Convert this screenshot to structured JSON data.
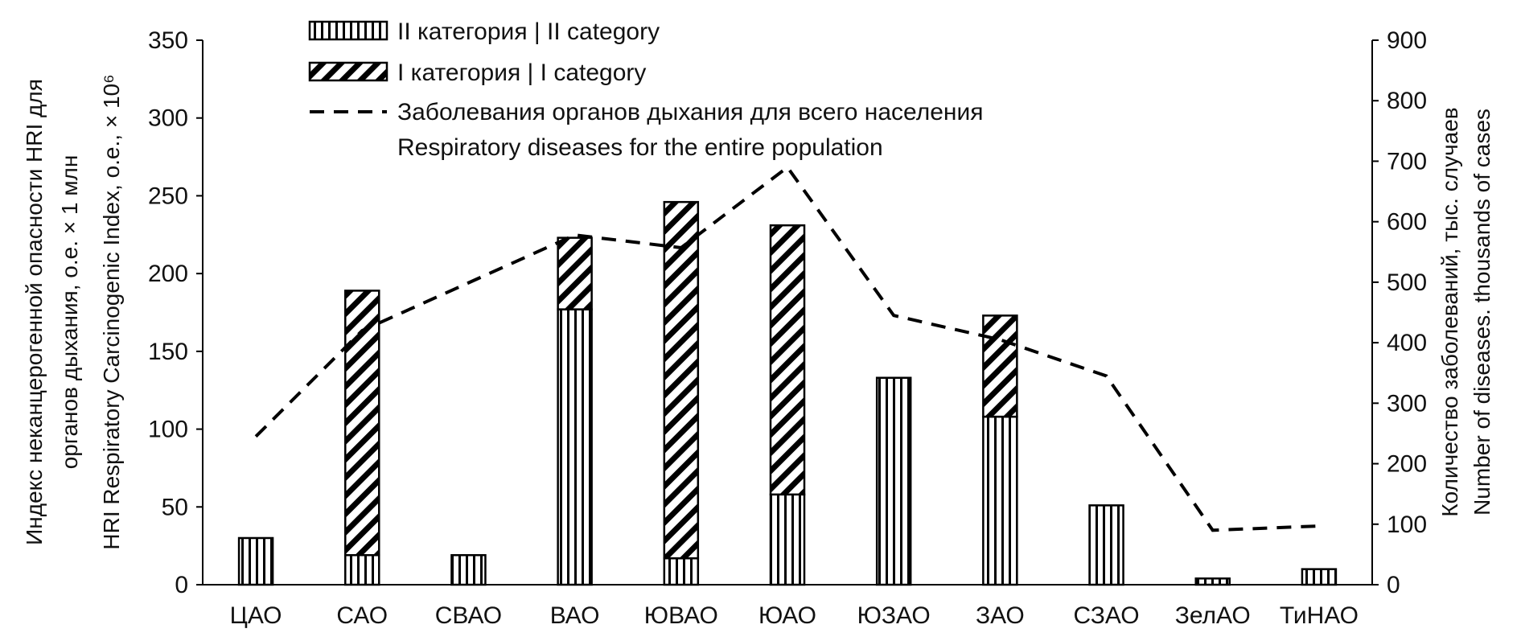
{
  "chart_data": {
    "type": "bar",
    "categories": [
      "ЦАО",
      "САО",
      "СВАО",
      "ВАО",
      "ЮВАО",
      "ЮАО",
      "ЮЗАО",
      "ЗАО",
      "СЗАО",
      "ЗелАО",
      "ТиНАО"
    ],
    "series": [
      {
        "name": "II категория | II category",
        "type": "bar",
        "stack": "hri",
        "pattern": "vertical-lines",
        "axis": "left",
        "values": [
          30,
          19,
          19,
          177,
          17,
          58,
          133,
          108,
          51,
          4,
          10
        ]
      },
      {
        "name": "I категория | I category",
        "type": "bar",
        "stack": "hri",
        "pattern": "diagonal-hatch",
        "axis": "left",
        "values": [
          0,
          170,
          0,
          46,
          229,
          173,
          0,
          65,
          0,
          0,
          0
        ]
      },
      {
        "name": "Заболевания органов дыхания для всего населения\nRespiratory diseases for the entire population",
        "type": "line",
        "style": "dashed",
        "axis": "right",
        "values": [
          245,
          420,
          null,
          578,
          557,
          690,
          445,
          405,
          345,
          90,
          97
        ]
      }
    ],
    "ylabel": "Индекс неканцерогенной опасности  HRI для органов дыхания, о.е. × 1 млн\nHRI Respiratory Carcinogenic Index, o.e., × 10⁶",
    "y2label": "Количество заболеваний, тыс. случаев\nNumber of diseases. thousands of cases",
    "xlabel": "",
    "ylim": [
      0,
      350
    ],
    "yticks": [
      0,
      50,
      100,
      150,
      200,
      250,
      300,
      350
    ],
    "y2lim": [
      0,
      900
    ],
    "y2ticks": [
      0,
      100,
      200,
      300,
      400,
      500,
      600,
      700,
      800,
      900
    ],
    "grid": false,
    "legend_position": "top-left",
    "colors": {
      "stroke": "#000000",
      "fill": "#ffffff"
    }
  }
}
